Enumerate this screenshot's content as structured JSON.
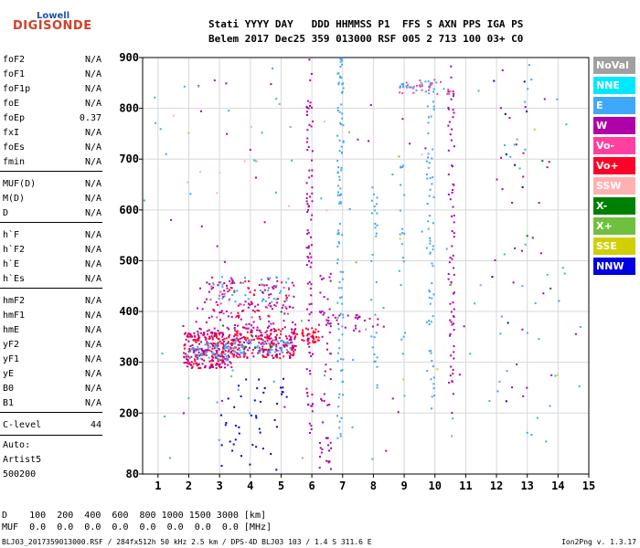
{
  "logo": {
    "line1": "Lowell",
    "line2": "DIGISONDE"
  },
  "header": {
    "line1": "Stati YYYY DAY   DDD HHMMSS P1  FFS S AXN PPS IGA PS",
    "line2": "Belem 2017 Dec25 359 013000 RSF 005 2 713 100 03+ C0"
  },
  "params": [
    {
      "name": "foF2",
      "value": "N/A"
    },
    {
      "name": "foF1",
      "value": "N/A"
    },
    {
      "name": "foF1p",
      "value": "N/A"
    },
    {
      "name": "foE",
      "value": "N/A"
    },
    {
      "name": "foEp",
      "value": "0.37"
    },
    {
      "name": "fxI",
      "value": "N/A"
    },
    {
      "name": "foEs",
      "value": "N/A"
    },
    {
      "name": "fmin",
      "value": "N/A"
    },
    {
      "name": "MUF(D)",
      "value": "N/A"
    },
    {
      "name": "M(D)",
      "value": "N/A"
    },
    {
      "name": "D",
      "value": "N/A"
    },
    {
      "name": "h`F",
      "value": "N/A"
    },
    {
      "name": "h`F2",
      "value": "N/A"
    },
    {
      "name": "h`E",
      "value": "N/A"
    },
    {
      "name": "h`Es",
      "value": "N/A"
    },
    {
      "name": "hmF2",
      "value": "N/A"
    },
    {
      "name": "hmF1",
      "value": "N/A"
    },
    {
      "name": "hmE",
      "value": "N/A"
    },
    {
      "name": "yF2",
      "value": "N/A"
    },
    {
      "name": "yF1",
      "value": "N/A"
    },
    {
      "name": "yE",
      "value": "N/A"
    },
    {
      "name": "B0",
      "value": "N/A"
    },
    {
      "name": "B1",
      "value": "N/A"
    },
    {
      "name": "C-level",
      "value": "44"
    }
  ],
  "auto": {
    "line1": "Auto:",
    "line2": "Artist5",
    "line3": "500200"
  },
  "legend": [
    {
      "label": "NoVal",
      "color": "#a0a0a0"
    },
    {
      "label": "NNE",
      "color": "#00e8ff"
    },
    {
      "label": "E",
      "color": "#40a8f8"
    },
    {
      "label": "W",
      "color": "#b000a8"
    },
    {
      "label": "Vo-",
      "color": "#ff40a0"
    },
    {
      "label": "Vo+",
      "color": "#ff0028"
    },
    {
      "label": "SSW",
      "color": "#ffb0b0"
    },
    {
      "label": "X-",
      "color": "#008000"
    },
    {
      "label": "X+",
      "color": "#70c040"
    },
    {
      "label": "SSE",
      "color": "#d0d000"
    },
    {
      "label": "NNW",
      "color": "#0000e0"
    }
  ],
  "bottom": {
    "d_row": "D    100  200  400  600  800 1000 1500 3000 [km]",
    "muf_row": "MUF  0.0  0.0  0.0  0.0  0.0  0.0  0.0  0.0 [MHz]"
  },
  "footer": {
    "left": "BLJ03_2017359013000.RSF / 284fx512h 50 kHz 2.5 km / DPS-4D BLJ03 103 / 1.4 S 311.6 E",
    "right": "Ion2Png v. 1.3.17"
  },
  "chart_data": {
    "type": "scatter",
    "xlim": [
      0.5,
      15
    ],
    "ylim": [
      80,
      900
    ],
    "x_ticks": [
      1,
      2,
      3,
      4,
      5,
      6,
      7,
      8,
      9,
      10,
      11,
      12,
      13,
      14,
      15
    ],
    "y_ticks": [
      80,
      200,
      300,
      400,
      500,
      600,
      700,
      800,
      900
    ],
    "grid": true,
    "clusters": [
      {
        "color": "#ff0028",
        "x": [
          1.8,
          3.4
        ],
        "y": [
          290,
          360
        ],
        "n": 170
      },
      {
        "color": "#b000a8",
        "x": [
          1.8,
          3.4
        ],
        "y": [
          290,
          370
        ],
        "n": 110
      },
      {
        "color": "#40a8f8",
        "x": [
          1.9,
          3.3
        ],
        "y": [
          305,
          340
        ],
        "n": 60
      },
      {
        "color": "#ff0028",
        "x": [
          3.4,
          5.5
        ],
        "y": [
          310,
          370
        ],
        "n": 150
      },
      {
        "color": "#b000a8",
        "x": [
          3.4,
          5.5
        ],
        "y": [
          310,
          380
        ],
        "n": 110
      },
      {
        "color": "#40a8f8",
        "x": [
          3.4,
          5.3
        ],
        "y": [
          320,
          345
        ],
        "n": 55
      },
      {
        "color": "#ff0028",
        "x": [
          5.6,
          6.2
        ],
        "y": [
          340,
          370
        ],
        "n": 40
      },
      {
        "color": "#b000a8",
        "x": [
          2.2,
          5.4
        ],
        "y": [
          380,
          470
        ],
        "n": 90
      },
      {
        "color": "#40a8f8",
        "x": [
          2.6,
          5.3
        ],
        "y": [
          420,
          470
        ],
        "n": 40
      },
      {
        "color": "#ff40a0",
        "x": [
          2.6,
          5.3
        ],
        "y": [
          390,
          460
        ],
        "n": 30
      },
      {
        "color": "#ff0028",
        "x": [
          2.6,
          5.3
        ],
        "y": [
          390,
          470
        ],
        "n": 30
      },
      {
        "color": "#0000e0",
        "x": [
          3.0,
          5.2
        ],
        "y": [
          80,
          280
        ],
        "n": 45
      },
      {
        "color": "#b000a8",
        "x": [
          5.8,
          6.0
        ],
        "y": [
          150,
          900
        ],
        "n": 95
      },
      {
        "color": "#40a8f8",
        "x": [
          6.8,
          7.0
        ],
        "y": [
          150,
          900
        ],
        "n": 100
      },
      {
        "color": "#b000a8",
        "x": [
          6.2,
          6.6
        ],
        "y": [
          90,
          480
        ],
        "n": 55
      },
      {
        "color": "#b000a8",
        "x": [
          6.3,
          8.5
        ],
        "y": [
          360,
          395
        ],
        "n": 28
      },
      {
        "color": "#b000a8",
        "x": [
          10.4,
          10.6
        ],
        "y": [
          200,
          900
        ],
        "n": 75
      },
      {
        "color": "#40a8f8",
        "x": [
          9.7,
          9.95
        ],
        "y": [
          200,
          860
        ],
        "n": 65
      },
      {
        "color": "#40a8f8",
        "x": [
          7.9,
          8.1
        ],
        "y": [
          250,
          650
        ],
        "n": 30
      },
      {
        "color": "#40a8f8",
        "x": [
          8.8,
          9.0
        ],
        "y": [
          300,
          700
        ],
        "n": 20
      },
      {
        "color": "#ff40a0",
        "x": [
          8.8,
          10.5
        ],
        "y": [
          830,
          860
        ],
        "n": 30
      },
      {
        "color": "#40a8f8",
        "x": [
          8.8,
          10.3
        ],
        "y": [
          835,
          855
        ],
        "n": 20
      },
      {
        "color": "#b000a8",
        "x": [
          11.8,
          13.8
        ],
        "y": [
          200,
          880
        ],
        "n": 20
      },
      {
        "color": "#40a8f8",
        "x": [
          11.5,
          14.2
        ],
        "y": [
          150,
          880
        ],
        "n": 20
      },
      {
        "color": "#40a8f8",
        "x": [
          0.5,
          15
        ],
        "y": [
          100,
          890
        ],
        "n": 60
      },
      {
        "color": "#b000a8",
        "x": [
          0.5,
          15
        ],
        "y": [
          100,
          890
        ],
        "n": 40
      },
      {
        "color": "#ffb0b0",
        "x": [
          1.0,
          10.0
        ],
        "y": [
          600,
          800
        ],
        "n": 12
      },
      {
        "color": "#0000e0",
        "x": [
          11.5,
          13.5
        ],
        "y": [
          200,
          880
        ],
        "n": 10
      },
      {
        "color": "#008000",
        "x": [
          3.0,
          5.5
        ],
        "y": [
          300,
          420
        ],
        "n": 6
      },
      {
        "color": "#008000",
        "x": [
          12.5,
          13.8
        ],
        "y": [
          220,
          800
        ],
        "n": 4
      },
      {
        "color": "#d0d000",
        "x": [
          1.0,
          14.0
        ],
        "y": [
          150,
          830
        ],
        "n": 6
      },
      {
        "color": "#70c040",
        "x": [
          5.0,
          14.0
        ],
        "y": [
          150,
          830
        ],
        "n": 5
      },
      {
        "color": "#a0a0a0",
        "x": [
          0.6,
          14.5
        ],
        "y": [
          90,
          890
        ],
        "n": 10
      }
    ]
  }
}
